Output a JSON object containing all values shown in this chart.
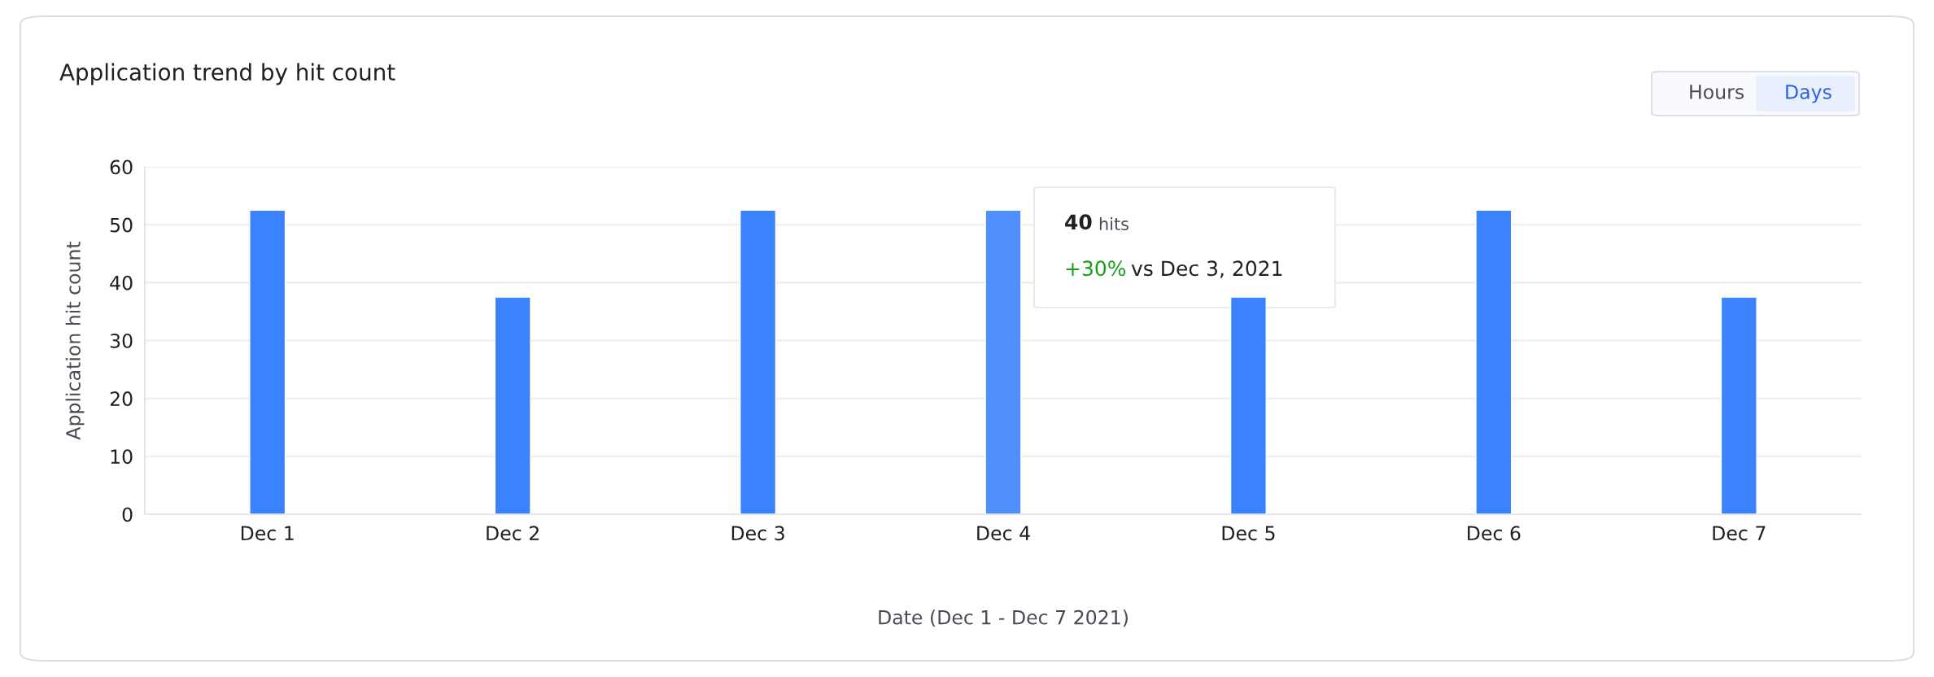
{
  "chart_data": {
    "type": "bar",
    "title": "Application trend by hit count",
    "xlabel": "Date (Dec 1 - Dec 7 2021)",
    "ylabel": "Application hit count",
    "categories": [
      "Dec 1",
      "Dec 2",
      "Dec 3",
      "Dec 4",
      "Dec 5",
      "Dec 6",
      "Dec 7"
    ],
    "values": [
      52.5,
      37.5,
      52.5,
      52.5,
      37.5,
      52.5,
      37.5
    ],
    "colors": [
      "#3b82fe",
      "#3b82fe",
      "#3b82fe",
      "#4f8ffe",
      "#3b82fe",
      "#3b82fe",
      "#3b82fe"
    ],
    "ylim": [
      0,
      60
    ],
    "yticks": [
      0,
      10,
      20,
      30,
      40,
      50,
      60
    ],
    "grid": "y",
    "annotations": [
      "40",
      "hits",
      "+30%",
      "vs Dec 3, 2021",
      "Hours",
      "Days"
    ]
  }
}
